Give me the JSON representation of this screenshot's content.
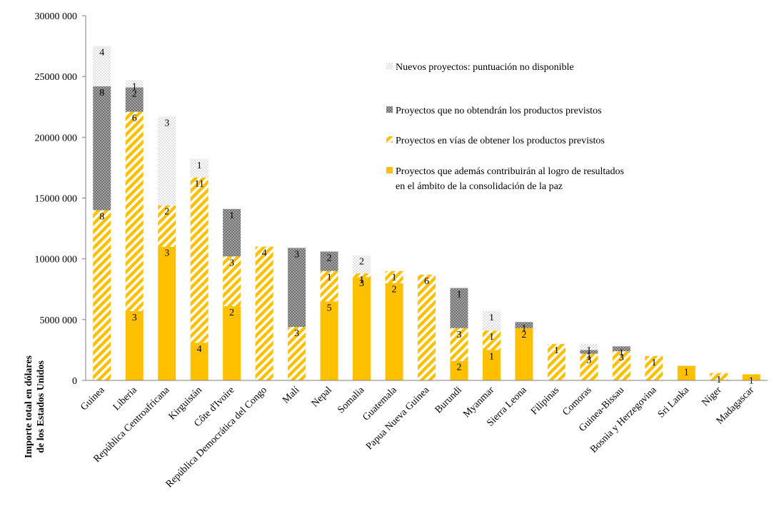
{
  "chart_data": {
    "type": "bar",
    "stacked": true,
    "ylabel_lines": [
      "Importe total en dólares",
      "de los Estados Unidos"
    ],
    "ylim": [
      0,
      30000000
    ],
    "y_ticks": [
      0,
      5000000,
      10000000,
      15000000,
      20000000,
      25000000,
      30000000
    ],
    "y_tick_labels": [
      "0",
      "5000 000",
      "10000 000",
      "15000 000",
      "20000 000",
      "25000 000",
      "30000 000"
    ],
    "grid": false,
    "legend_position": "top-right",
    "categories": [
      "Guinea",
      "Liberia",
      "República Centroafricana",
      "Kirguistán",
      "Côte d'Ivoire",
      "República Democrática del Congo",
      "Malí",
      "Nepal",
      "Somalia",
      "Guatemala",
      "Papua Nueva Guinea",
      "Burundi",
      "Myanmar",
      "Sierra Leona",
      "Filipinas",
      "Comoras",
      "Guinea-Bissau",
      "Bosnia y Herzegovina",
      "Sri Lanka",
      "Níger",
      "Madagascar"
    ],
    "series": [
      {
        "name": "Proyectos que además contribuirán al logro de resultados en el ámbito de la consolidación de la paz",
        "legend_lines": [
          "Proyectos que además contribuirán al logro de resultados",
          "en el ámbito de la consolidación de la paz"
        ],
        "pattern": "solid",
        "color": "#FFC000",
        "values": [
          0,
          5700000,
          11000000,
          3100000,
          6100000,
          0,
          0,
          6500000,
          8500000,
          8000000,
          0,
          1600000,
          2500000,
          4300000,
          0,
          0,
          0,
          0,
          1200000,
          0,
          500000
        ],
        "counts": [
          "",
          "3",
          "3",
          "4",
          "2",
          "",
          "",
          "5",
          "3",
          "2",
          "",
          "2",
          "1",
          "2",
          "",
          "",
          "",
          "",
          "1",
          "",
          "1"
        ]
      },
      {
        "name": "Proyectos en vías de obtener los productos previstos",
        "legend_lines": [
          "Proyectos en vías de obtener los productos previstos"
        ],
        "pattern": "stripes",
        "color": "#FFC000",
        "values": [
          14000000,
          16400000,
          3400000,
          13600000,
          4100000,
          11000000,
          4400000,
          2500000,
          300000,
          1000000,
          8700000,
          2700000,
          1600000,
          0,
          3000000,
          2200000,
          2400000,
          2000000,
          0,
          600000,
          0
        ],
        "counts": [
          "8",
          "6",
          "2",
          "11",
          "3",
          "4",
          "3",
          "1",
          "1",
          "1",
          "6",
          "3",
          "1",
          "",
          "1",
          "3",
          "3",
          "1",
          "",
          "1",
          ""
        ]
      },
      {
        "name": "Proyectos que no obtendrán los productos previstos",
        "legend_lines": [
          "Proyectos que no obtendrán los productos previstos"
        ],
        "pattern": "checker",
        "color": "#8C8C8C",
        "values": [
          10200000,
          2000000,
          0,
          0,
          3900000,
          0,
          6500000,
          1600000,
          0,
          0,
          0,
          3300000,
          0,
          500000,
          0,
          300000,
          400000,
          0,
          0,
          0,
          0
        ],
        "counts": [
          "8",
          "2",
          "",
          "",
          "1",
          "",
          "3",
          "2",
          "",
          "",
          "",
          "1",
          "",
          "1",
          "",
          "1",
          "1",
          "",
          "",
          "",
          ""
        ]
      },
      {
        "name": "Nuevos proyectos: puntuación no disponible",
        "legend_lines": [
          "Nuevos proyectos: puntuación no disponible"
        ],
        "pattern": "dots",
        "color": "#D9D9D9",
        "values": [
          3300000,
          600000,
          7300000,
          1500000,
          0,
          0,
          0,
          0,
          1500000,
          0,
          0,
          0,
          1600000,
          0,
          0,
          500000,
          0,
          0,
          0,
          0,
          0
        ],
        "counts": [
          "4",
          "1",
          "3",
          "1",
          "",
          "",
          "",
          "",
          "2",
          "",
          "",
          "",
          "1",
          "",
          "",
          "1",
          "",
          "",
          "",
          "",
          ""
        ]
      }
    ],
    "legend_order": [
      3,
      2,
      1,
      0
    ]
  }
}
